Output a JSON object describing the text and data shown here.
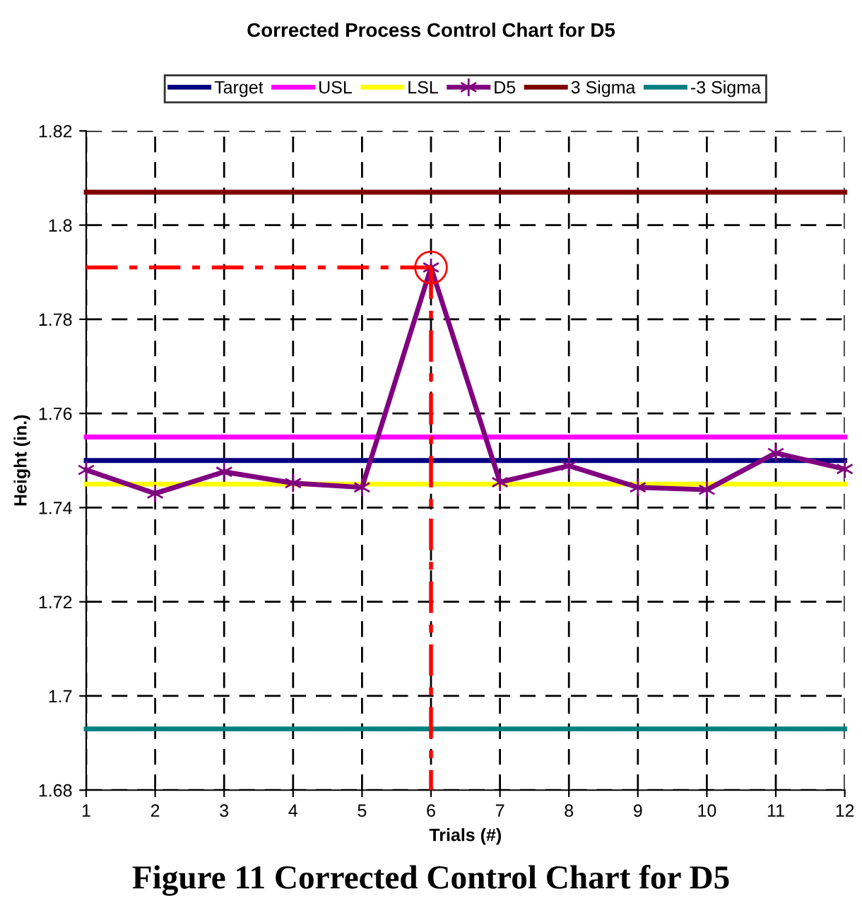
{
  "chart_data": {
    "type": "line",
    "title": "Corrected Process Control Chart for D5",
    "xlabel": "Trials (#)",
    "ylabel": "Height (in.)",
    "xlim": [
      1,
      12
    ],
    "xticks": [
      1,
      2,
      3,
      4,
      5,
      6,
      7,
      8,
      9,
      10,
      11,
      12
    ],
    "ylim": [
      1.68,
      1.82
    ],
    "yticks": [
      1.68,
      1.7,
      1.72,
      1.74,
      1.76,
      1.78,
      1.8,
      1.82
    ],
    "grid": true,
    "legend": "top",
    "series": [
      {
        "name": "Target",
        "color": "#000080",
        "x": [
          1,
          12
        ],
        "values": [
          1.75,
          1.75
        ],
        "marker": "none"
      },
      {
        "name": "USL",
        "color": "#ff00ff",
        "x": [
          1,
          12
        ],
        "values": [
          1.755,
          1.755
        ],
        "marker": "none"
      },
      {
        "name": "LSL",
        "color": "#ffff00",
        "x": [
          1,
          12
        ],
        "values": [
          1.745,
          1.745
        ],
        "marker": "none"
      },
      {
        "name": "D5",
        "color": "#800080",
        "x": [
          1,
          2,
          3,
          4,
          5,
          6,
          7,
          8,
          9,
          10,
          11,
          12
        ],
        "values": [
          1.748,
          1.743,
          1.7476,
          1.7452,
          1.7443,
          1.791,
          1.7454,
          1.7489,
          1.7443,
          1.7438,
          1.7516,
          1.7482
        ],
        "marker": "cross"
      },
      {
        "name": "3 Sigma",
        "color": "#800000",
        "x": [
          1,
          12
        ],
        "values": [
          1.807,
          1.807
        ],
        "marker": "none"
      },
      {
        "name": "-3 Sigma",
        "color": "#008080",
        "x": [
          1,
          12
        ],
        "values": [
          1.693,
          1.693
        ],
        "marker": "none"
      },
      {
        "color": "#ff0000",
        "x": [
          1,
          6
        ],
        "values": [
          1.791,
          1.791
        ],
        "marker": "none",
        "line_style": "dashed"
      },
      {
        "color": "#ff0000",
        "x": [
          6,
          6
        ],
        "values": [
          1.791,
          1.68
        ],
        "marker": "none",
        "line_style": "dashed"
      },
      {
        "type": "scatter",
        "color": "#ff0000",
        "x": [
          6
        ],
        "values": [
          1.791
        ],
        "marker": "circle"
      }
    ],
    "annotations": [
      "Figure 11 Corrected Control Chart for D5"
    ]
  }
}
